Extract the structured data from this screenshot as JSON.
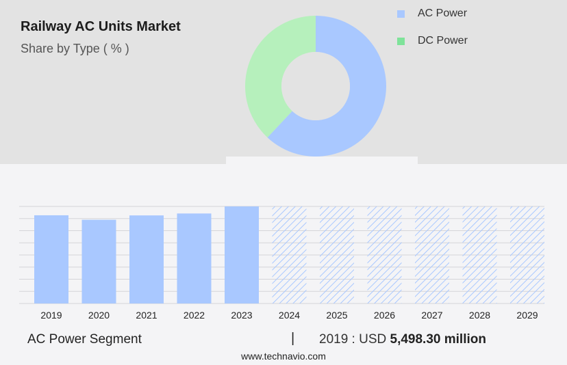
{
  "header": {
    "title": "Railway AC Units Market",
    "subtitle": "Share by Type ( % )"
  },
  "legend": [
    {
      "label": "AC Power",
      "color": "#a9c8ff"
    },
    {
      "label": "DC Power",
      "color": "#7fe39a"
    }
  ],
  "chart_data": [
    {
      "type": "pie",
      "variant": "donut",
      "title": "Railway AC Units Market",
      "subtitle": "Share by Type ( % )",
      "categories": [
        "AC Power",
        "DC Power"
      ],
      "values": [
        62,
        38
      ],
      "colors": [
        "#a9c8ff",
        "#b6f0bc"
      ],
      "legend_position": "top-right"
    },
    {
      "type": "bar",
      "categories": [
        "2019",
        "2020",
        "2021",
        "2022",
        "2023",
        "2024",
        "2025",
        "2026",
        "2027",
        "2028",
        "2029"
      ],
      "values": [
        5498.3,
        5220,
        5490,
        5610,
        6050,
        null,
        null,
        null,
        null,
        null,
        null
      ],
      "forecast_years": [
        "2024",
        "2025",
        "2026",
        "2027",
        "2028",
        "2029"
      ],
      "ylim": [
        0,
        6050
      ],
      "grid": true,
      "bar_color": "#a9c8ff"
    }
  ],
  "footer": {
    "segment": "AC Power Segment",
    "separator": "|",
    "year_label": "2019 : USD",
    "value": "5,498.30 million",
    "url": "www.technavio.com"
  }
}
